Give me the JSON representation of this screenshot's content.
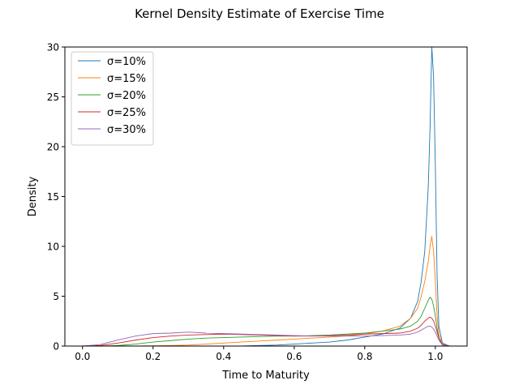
{
  "chart_data": {
    "type": "line",
    "title": "Kernel Density Estimate of Exercise Time",
    "xlabel": "Time to Maturity",
    "ylabel": "Density",
    "xlim": [
      -0.05,
      1.09
    ],
    "ylim": [
      0,
      30
    ],
    "xticks": [
      0.0,
      0.2,
      0.4,
      0.6,
      0.8,
      1.0
    ],
    "xtick_labels": [
      "0.0",
      "0.2",
      "0.4",
      "0.6",
      "0.8",
      "1.0"
    ],
    "yticks": [
      0,
      5,
      10,
      15,
      20,
      25,
      30
    ],
    "ytick_labels": [
      "0",
      "5",
      "10",
      "15",
      "20",
      "25",
      "30"
    ],
    "grid": false,
    "legend_position": "upper-left",
    "x": [
      0.0,
      0.05,
      0.1,
      0.15,
      0.2,
      0.25,
      0.3,
      0.35,
      0.4,
      0.45,
      0.5,
      0.55,
      0.6,
      0.65,
      0.7,
      0.75,
      0.8,
      0.85,
      0.9,
      0.93,
      0.95,
      0.96,
      0.97,
      0.98,
      0.985,
      0.99,
      0.995,
      1.0,
      1.005,
      1.01,
      1.02,
      1.04
    ],
    "series": [
      {
        "name": "σ=10%",
        "color": "#1f77b4",
        "values": [
          0,
          0,
          0,
          0,
          0,
          0,
          0,
          0,
          0,
          0,
          0.05,
          0.1,
          0.2,
          0.3,
          0.4,
          0.6,
          0.9,
          1.2,
          1.8,
          2.8,
          4.5,
          6.5,
          9.5,
          16,
          22,
          30,
          27,
          18,
          7,
          2,
          0.3,
          0
        ]
      },
      {
        "name": "σ=15%",
        "color": "#ff7f0e",
        "values": [
          0,
          0,
          0,
          0,
          0.02,
          0.05,
          0.1,
          0.2,
          0.3,
          0.4,
          0.5,
          0.6,
          0.7,
          0.8,
          0.9,
          1.0,
          1.2,
          1.5,
          2.0,
          2.8,
          3.8,
          5.0,
          6.5,
          8.5,
          10.0,
          11.0,
          9.5,
          6.5,
          3.0,
          1.2,
          0.2,
          0
        ]
      },
      {
        "name": "σ=20%",
        "color": "#2ca02c",
        "values": [
          0,
          0,
          0.05,
          0.2,
          0.4,
          0.55,
          0.7,
          0.8,
          0.85,
          0.9,
          0.95,
          1.0,
          1.0,
          1.05,
          1.1,
          1.2,
          1.3,
          1.5,
          1.7,
          2.0,
          2.5,
          3.0,
          3.8,
          4.6,
          4.9,
          4.7,
          4.0,
          3.0,
          1.8,
          0.8,
          0.15,
          0
        ]
      },
      {
        "name": "σ=25%",
        "color": "#d62728",
        "values": [
          0,
          0.05,
          0.3,
          0.6,
          0.85,
          1.0,
          1.1,
          1.15,
          1.2,
          1.15,
          1.1,
          1.05,
          1.0,
          1.0,
          1.05,
          1.1,
          1.2,
          1.25,
          1.3,
          1.5,
          1.8,
          2.1,
          2.5,
          2.8,
          2.9,
          2.8,
          2.5,
          2.0,
          1.4,
          0.8,
          0.15,
          0
        ]
      },
      {
        "name": "σ=30%",
        "color": "#9467bd",
        "values": [
          0,
          0.15,
          0.6,
          1.0,
          1.25,
          1.3,
          1.4,
          1.3,
          1.25,
          1.2,
          1.15,
          1.1,
          1.05,
          1.0,
          1.0,
          1.0,
          1.0,
          1.05,
          1.1,
          1.2,
          1.4,
          1.6,
          1.8,
          2.0,
          2.0,
          1.9,
          1.7,
          1.4,
          1.0,
          0.6,
          0.1,
          0
        ]
      }
    ]
  }
}
